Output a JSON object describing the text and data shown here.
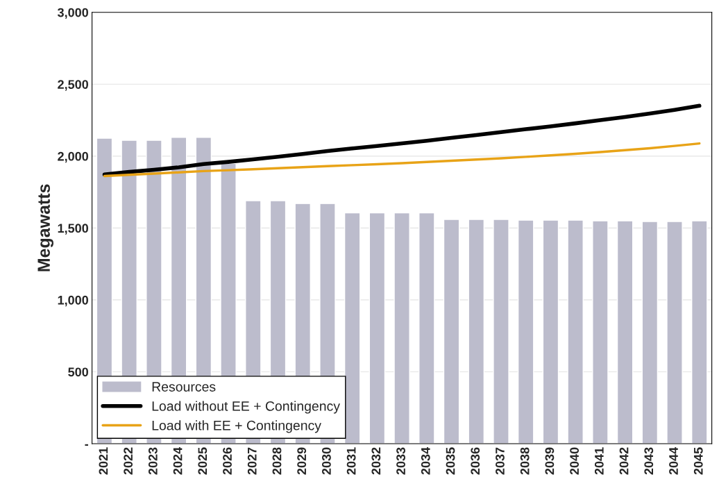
{
  "chart_data": {
    "type": "bar",
    "ylabel": "Megawatts",
    "categories": [
      "2021",
      "2022",
      "2023",
      "2024",
      "2025",
      "2026",
      "2027",
      "2028",
      "2029",
      "2030",
      "2031",
      "2032",
      "2033",
      "2034",
      "2035",
      "2036",
      "2037",
      "2038",
      "2039",
      "2040",
      "2041",
      "2042",
      "2043",
      "2044",
      "2045"
    ],
    "series": [
      {
        "name": "Resources",
        "color": "#bcbccc",
        "values": [
          2125,
          2110,
          2110,
          2130,
          2130,
          1950,
          1690,
          1690,
          1670,
          1670,
          1605,
          1605,
          1605,
          1605,
          1560,
          1560,
          1560,
          1555,
          1555,
          1555,
          1550,
          1550,
          1545,
          1545,
          1550
        ]
      },
      {
        "name": "Load without EE + Contingency",
        "type": "line",
        "color": "#000000",
        "values": [
          1872,
          1890,
          1905,
          1922,
          1945,
          1960,
          1978,
          1996,
          2015,
          2035,
          2053,
          2070,
          2088,
          2107,
          2127,
          2147,
          2167,
          2187,
          2207,
          2228,
          2250,
          2272,
          2296,
          2322,
          2350
        ]
      },
      {
        "name": "Load with EE + Contingency",
        "type": "line",
        "color": "#e8a317",
        "values": [
          1862,
          1870,
          1878,
          1887,
          1896,
          1902,
          1909,
          1916,
          1923,
          1930,
          1937,
          1944,
          1951,
          1959,
          1968,
          1976,
          1985,
          1995,
          2005,
          2016,
          2028,
          2041,
          2055,
          2071,
          2088
        ]
      }
    ],
    "ylim": [
      0,
      3000
    ],
    "yticks": [
      {
        "value": 0,
        "label": "-"
      },
      {
        "value": 500,
        "label": "500"
      },
      {
        "value": 1000,
        "label": "1,000"
      },
      {
        "value": 1500,
        "label": "1,500"
      },
      {
        "value": 2000,
        "label": "2,000"
      },
      {
        "value": 2500,
        "label": "2,500"
      },
      {
        "value": 3000,
        "label": "3,000"
      }
    ],
    "grid": "y",
    "legend": "bottom left"
  }
}
